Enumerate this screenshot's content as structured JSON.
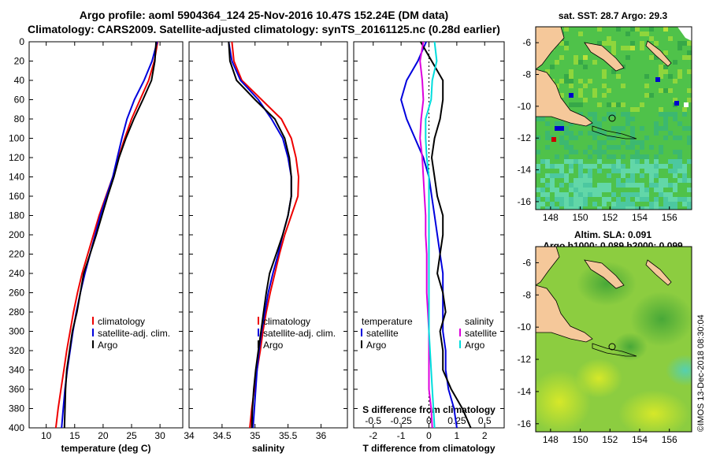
{
  "header": {
    "title_line1": "Argo profile: aoml 5904364_124 25-Nov-2016 10.47S 152.24E (DM data)",
    "title_line2": "Climatology: CARS2009. Satellite-adjusted climatology: synTS_20161125.nc (0.28d earlier)"
  },
  "footer": {
    "stamp": "©IMOS 13-Dec-2018 08:30:04"
  },
  "colors": {
    "climatology": "#ee0000",
    "satellite": "#0000dd",
    "argo": "#000000",
    "s_satellite": "#dd00dd",
    "s_argo": "#00dddd",
    "land": "#f5c89a"
  },
  "chart_data": [
    {
      "type": "line",
      "id": "temperature",
      "xlabel": "temperature (deg C)",
      "ylabel": "",
      "xlim": [
        7,
        34
      ],
      "ylim": [
        400,
        0
      ],
      "xticks": [
        10,
        15,
        20,
        25,
        30
      ],
      "yticks": [
        0,
        20,
        40,
        60,
        80,
        100,
        120,
        140,
        160,
        180,
        200,
        220,
        240,
        260,
        280,
        300,
        320,
        340,
        360,
        380,
        400
      ],
      "legend": [
        "climatology",
        "satellite-adj. clim.",
        "Argo"
      ],
      "series": [
        {
          "name": "climatology",
          "depth": [
            0,
            20,
            40,
            60,
            80,
            100,
            120,
            140,
            160,
            180,
            200,
            220,
            240,
            260,
            280,
            300,
            320,
            340,
            360,
            380,
            400
          ],
          "values": [
            29.6,
            29.0,
            28.0,
            26.5,
            25.0,
            23.8,
            22.7,
            21.7,
            20.5,
            19.3,
            18.3,
            17.3,
            16.3,
            15.5,
            14.8,
            14.2,
            13.6,
            13.1,
            12.6,
            12.1,
            11.7
          ]
        },
        {
          "name": "satellite-adj. clim.",
          "depth": [
            0,
            20,
            40,
            60,
            80,
            100,
            120,
            140,
            160,
            180,
            200,
            220,
            240,
            260,
            280,
            300,
            320,
            340,
            360,
            380,
            400
          ],
          "values": [
            29.5,
            28.6,
            27.2,
            25.5,
            24.2,
            23.3,
            22.5,
            21.7,
            20.6,
            19.5,
            18.6,
            17.7,
            16.8,
            16.0,
            15.3,
            14.7,
            14.2,
            13.7,
            13.3,
            13.0,
            12.7
          ]
        },
        {
          "name": "Argo",
          "depth": [
            0,
            20,
            40,
            60,
            80,
            100,
            120,
            140,
            160,
            180,
            200,
            220,
            240,
            260,
            280,
            300,
            320,
            340,
            360,
            380,
            400
          ],
          "values": [
            29.3,
            29.1,
            28.5,
            27.0,
            25.4,
            24.0,
            22.8,
            21.9,
            20.8,
            19.8,
            18.8,
            17.7,
            16.6,
            16.0,
            15.4,
            14.6,
            14.1,
            13.6,
            13.4,
            13.3,
            13.2
          ]
        }
      ]
    },
    {
      "type": "line",
      "id": "salinity",
      "xlabel": "salinity",
      "ylabel": "",
      "xlim": [
        34,
        36.4
      ],
      "ylim": [
        400,
        0
      ],
      "xticks": [
        34,
        34.5,
        35,
        35.5,
        36
      ],
      "legend": [
        "climatology",
        "satellite-adj. clim.",
        "Argo"
      ],
      "series": [
        {
          "name": "climatology",
          "depth": [
            0,
            20,
            40,
            60,
            80,
            100,
            120,
            140,
            160,
            180,
            200,
            220,
            240,
            260,
            280,
            300,
            320,
            340,
            360,
            380,
            400
          ],
          "values": [
            34.65,
            34.68,
            34.8,
            35.1,
            35.4,
            35.55,
            35.62,
            35.66,
            35.65,
            35.55,
            35.45,
            35.37,
            35.3,
            35.23,
            35.17,
            35.12,
            35.08,
            35.03,
            34.99,
            34.95,
            34.92
          ]
        },
        {
          "name": "satellite-adj. clim.",
          "depth": [
            0,
            20,
            40,
            60,
            80,
            100,
            120,
            140,
            160,
            180,
            200,
            220,
            240,
            260,
            280,
            300,
            320,
            340,
            360,
            380,
            400
          ],
          "values": [
            34.6,
            34.65,
            34.78,
            35.05,
            35.25,
            35.42,
            35.5,
            35.55,
            35.55,
            35.5,
            35.42,
            35.35,
            35.27,
            35.2,
            35.15,
            35.1,
            35.06,
            35.03,
            35.01,
            34.99,
            34.97
          ]
        },
        {
          "name": "Argo",
          "depth": [
            0,
            20,
            40,
            60,
            80,
            100,
            120,
            140,
            160,
            180,
            200,
            220,
            240,
            260,
            280,
            300,
            320,
            340,
            360,
            380,
            400
          ],
          "values": [
            34.6,
            34.62,
            34.72,
            35.0,
            35.3,
            35.45,
            35.52,
            35.55,
            35.55,
            35.5,
            35.42,
            35.32,
            35.22,
            35.17,
            35.13,
            35.09,
            35.05,
            35.01,
            34.98,
            34.96,
            34.95
          ]
        }
      ]
    },
    {
      "type": "line",
      "id": "difference",
      "xlabel": "T difference from climatology",
      "xlabel_top": "S difference from climatology",
      "xlim": [
        -2.7,
        2.7
      ],
      "ylim": [
        400,
        0
      ],
      "xticks": [
        -2,
        -1,
        0,
        1,
        2
      ],
      "xticks_top": [
        -0.5,
        -0.25,
        0,
        0.25,
        0.5
      ],
      "legend_left": [
        "temperature",
        "satellite",
        "Argo"
      ],
      "legend_right": [
        "salinity",
        "satellite",
        "Argo"
      ],
      "series": [
        {
          "name": "temperature satellite",
          "depth": [
            0,
            20,
            40,
            60,
            80,
            100,
            120,
            140,
            160,
            180,
            200,
            220,
            240,
            260,
            280,
            300,
            320,
            340,
            360,
            380,
            400
          ],
          "values": [
            -0.1,
            -0.4,
            -0.8,
            -1.0,
            -0.8,
            -0.5,
            -0.2,
            0.0,
            0.1,
            0.2,
            0.3,
            0.4,
            0.5,
            0.5,
            0.5,
            0.5,
            0.6,
            0.6,
            0.7,
            0.9,
            1.0
          ]
        },
        {
          "name": "temperature Argo",
          "depth": [
            0,
            20,
            40,
            60,
            80,
            100,
            120,
            140,
            160,
            180,
            200,
            220,
            240,
            260,
            280,
            300,
            320,
            340,
            360,
            380,
            400
          ],
          "values": [
            -0.3,
            0.1,
            0.5,
            0.5,
            0.4,
            0.2,
            0.1,
            0.2,
            0.3,
            0.5,
            0.5,
            0.4,
            0.3,
            0.5,
            0.6,
            0.4,
            0.5,
            0.5,
            0.8,
            1.2,
            1.5
          ]
        },
        {
          "name": "salinity satellite",
          "depth": [
            0,
            20,
            40,
            60,
            80,
            100,
            120,
            140,
            160,
            180,
            200,
            220,
            240,
            260,
            280,
            300,
            320,
            340,
            360,
            380,
            400
          ],
          "values": [
            -0.05,
            -0.08,
            -0.06,
            -0.05,
            -0.07,
            -0.08,
            -0.06,
            -0.05,
            -0.04,
            -0.03,
            -0.03,
            -0.02,
            -0.02,
            -0.02,
            -0.01,
            0.0,
            0.0,
            0.0,
            0.0,
            0.02,
            0.03
          ]
        },
        {
          "name": "salinity Argo",
          "depth": [
            0,
            20,
            40,
            60,
            80,
            100,
            120,
            140,
            160,
            180,
            200,
            220,
            240,
            260,
            280,
            300,
            320,
            340,
            360,
            380,
            400
          ],
          "values": [
            0.05,
            0.07,
            0.03,
            0.02,
            -0.03,
            -0.03,
            -0.02,
            0.0,
            0.0,
            0.0,
            0.0,
            0.0,
            0.0,
            0.0,
            0.0,
            0.0,
            0.01,
            0.02,
            0.03,
            0.04,
            0.05
          ]
        }
      ]
    },
    {
      "type": "heatmap",
      "id": "sst-map",
      "title": "sat. SST: 28.7  Argo: 29.3",
      "xlim": [
        147,
        157.5
      ],
      "ylim": [
        -16.5,
        -5
      ],
      "xticks": [
        148,
        150,
        152,
        154,
        156
      ],
      "yticks": [
        -6,
        -8,
        -10,
        -12,
        -14,
        -16
      ]
    },
    {
      "type": "heatmap",
      "id": "sla-map",
      "title_line1": "Altim. SLA: 0.091",
      "title_line2": "Argo h1000: 0.089  h2000: 0.099",
      "xlim": [
        147,
        157.5
      ],
      "ylim": [
        -16.5,
        -5
      ],
      "xticks": [
        148,
        150,
        152,
        154,
        156
      ],
      "yticks": [
        -6,
        -8,
        -10,
        -12,
        -14,
        -16
      ]
    }
  ]
}
